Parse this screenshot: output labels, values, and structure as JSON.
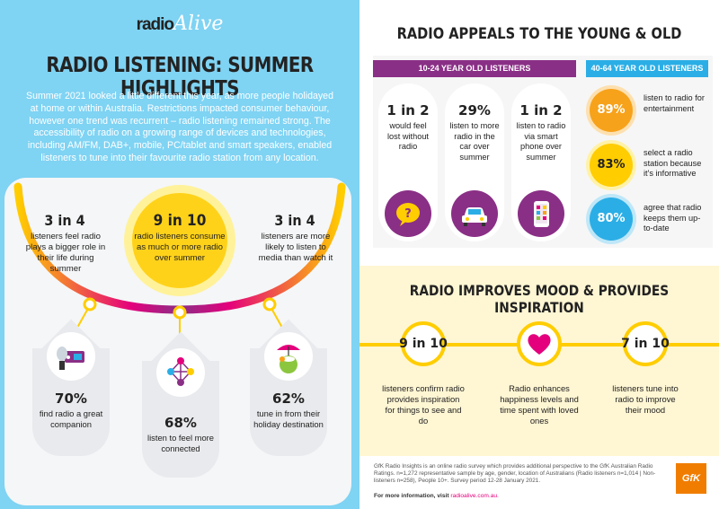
{
  "colors": {
    "left_bg": "#7fd3f3",
    "purple": "#8a2f86",
    "blue": "#2baee6",
    "orange": "#f7a21b",
    "yellow": "#ffcd00",
    "magenta": "#e4007c",
    "mood_bg": "#fff6d3"
  },
  "logo": {
    "part1": "radio",
    "part2": "Alive"
  },
  "left": {
    "title": "RADIO LISTENING: SUMMER HIGHLIGHTS",
    "intro": "Summer 2021 looked a little different this year, as more people holidayed at home or within Australia. Restrictions impacted consumer behaviour, however one trend was recurrent – radio listening remained strong. The accessibility of radio on a growing range of devices and technologies, including AM/FM, DAB+, mobile,  PC/tablet and smart speakers, enabled listeners to tune into their favourite radio station from any location.",
    "center": {
      "stat": "9 in 10",
      "text": "radio listeners consume as much or more radio over summer"
    },
    "left_stat": {
      "stat": "3 in 4",
      "text": "listeners feel radio plays a bigger role in their life during summer"
    },
    "right_stat": {
      "stat": "3 in 4",
      "text": "listeners are more likely to listen to media than watch it"
    },
    "drops": [
      {
        "icon": "radio-speaker-icon",
        "stat": "70%",
        "text": "find radio a great companion"
      },
      {
        "icon": "network-icon",
        "stat": "68%",
        "text": "listen to feel more connected"
      },
      {
        "icon": "holiday-drink-icon",
        "stat": "62%",
        "text": "tune in from their holiday destination"
      }
    ]
  },
  "right": {
    "title": "RADIO APPEALS TO THE YOUNG & OLD",
    "young_label": "10-24 YEAR OLD LISTENERS",
    "old_label": "40-64 YEAR OLD LISTENERS",
    "young": [
      {
        "stat": "1 in 2",
        "text": "would feel lost without radio",
        "icon": "question-bubble-icon"
      },
      {
        "stat": "29%",
        "text": "listen to more radio in the car over summer",
        "icon": "car-icon"
      },
      {
        "stat": "1 in 2",
        "text": "listen to radio via smart phone over summer",
        "icon": "smartphone-icon"
      }
    ],
    "old": [
      {
        "stat": "89%",
        "text": "listen to radio for entertainment",
        "color": "#f7a21b"
      },
      {
        "stat": "83%",
        "text": "select a radio station because it's informative",
        "color": "#ffcd00"
      },
      {
        "stat": "80%",
        "text": "agree that radio keeps them up-to-date",
        "color": "#2baee6"
      }
    ]
  },
  "mood": {
    "title": "RADIO IMPROVES MOOD & PROVIDES INSPIRATION",
    "items": [
      {
        "stat": "9 in 10",
        "text": "listeners confirm radio provides inspiration for things to see and do"
      },
      {
        "icon": "heart-icon",
        "text": "Radio enhances happiness levels and time spent with loved ones"
      },
      {
        "stat": "7 in 10",
        "text": "listeners tune into radio to improve their mood"
      }
    ]
  },
  "footer": {
    "note": "GfK Radio Insights is an online radio survey which provides additional perspective to the GfK Australian Radio Ratings. n=1,272 representative sample by age, gender, location of Australians (Radio listeners n=1,014 | Non-listeners n=258), People 10+. Survey period 12-28 January 2021.",
    "more_label": "For more information, visit",
    "link": "radioalive.com.au.",
    "brand": "GfK"
  }
}
